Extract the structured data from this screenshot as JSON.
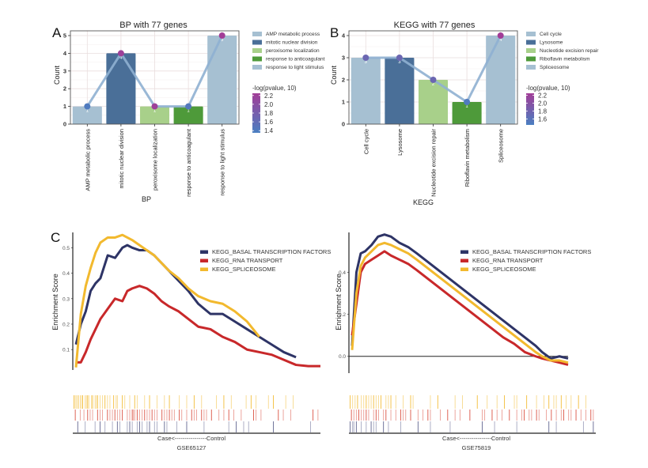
{
  "panels": {
    "A": "A",
    "B": "B",
    "C": "C"
  },
  "chart_data": [
    {
      "id": "bp",
      "type": "bar",
      "title": "BP with 77 genes",
      "xlabel": "BP",
      "ylabel": "Count",
      "ylim": [
        0,
        5
      ],
      "yticks": [
        "0",
        "1",
        "2",
        "3",
        "4",
        "5"
      ],
      "categories": [
        "AMP metabolic process",
        "mitotic nuclear division",
        "peroxisome localization",
        "response to anticoagulant",
        "response to light stimulus"
      ],
      "values": [
        1,
        4,
        1,
        1,
        5
      ],
      "bar_labels": [
        "1",
        "4",
        "1",
        "1",
        "5"
      ],
      "bar_colors": [
        "#a6c0d2",
        "#4a6f98",
        "#a8d08a",
        "#4e9a3a",
        "#a6c0d2"
      ],
      "line_points": [
        1,
        4,
        1,
        1,
        5
      ],
      "point_neglog_p": [
        1.4,
        2.2,
        2.2,
        1.45,
        2.25
      ],
      "legend": [
        "AMP metabolic process",
        "mitotic nuclear division",
        "peroxisome localization",
        "response to anticoagulant",
        "response to light stimulus"
      ],
      "colorbar_title": "-log(pvalue, 10)",
      "colorbar_ticks": [
        "2.2",
        "2.0",
        "1.8",
        "1.6",
        "1.4"
      ],
      "colorbar_range": [
        1.35,
        2.25
      ],
      "grid": true
    },
    {
      "id": "kegg",
      "type": "bar",
      "title": "KEGG with 77 genes",
      "xlabel": "KEGG",
      "ylabel": "Count",
      "ylim": [
        0,
        4
      ],
      "yticks": [
        "0",
        "1",
        "2",
        "3",
        "4"
      ],
      "categories": [
        "Cell cycle",
        "Lysosome",
        "Nucleotide excision repair",
        "Riboflavin metabolism",
        "Spliceosome"
      ],
      "values": [
        3,
        3,
        2,
        1,
        4
      ],
      "bar_labels": [
        "3",
        "3",
        "2",
        "1",
        "4"
      ],
      "bar_colors": [
        "#a6c0d2",
        "#4a6f98",
        "#a8d08a",
        "#4e9a3a",
        "#a6c0d2"
      ],
      "line_points": [
        3,
        3,
        2,
        1,
        4
      ],
      "point_neglog_p": [
        1.75,
        1.75,
        1.75,
        1.5,
        2.25
      ],
      "legend": [
        "Cell cycle",
        "Lysosome",
        "Nucleotide excision repair",
        "Riboflavin metabolism",
        "Spliceosome"
      ],
      "colorbar_title": "-log(pvalue, 10)",
      "colorbar_ticks": [
        "2.2",
        "2.0",
        "1.8",
        "1.6"
      ],
      "colorbar_range": [
        1.45,
        2.25
      ],
      "grid": true
    },
    {
      "id": "gsea1",
      "type": "line",
      "ylabel": "Enrichment Score",
      "xlabel": "Case<----------------Control",
      "dataset": "GSE65127",
      "ylim": [
        0.02,
        0.56
      ],
      "yticks": [
        0.1,
        0.2,
        0.3,
        0.4,
        0.5
      ],
      "ytick_labels": [
        "0.1",
        "0.2",
        "0.3",
        "0.4",
        "0.5"
      ],
      "x": [
        0,
        0.02,
        0.04,
        0.06,
        0.08,
        0.1,
        0.13,
        0.16,
        0.19,
        0.21,
        0.23,
        0.26,
        0.29,
        0.32,
        0.35,
        0.38,
        0.42,
        0.46,
        0.5,
        0.55,
        0.6,
        0.65,
        0.7,
        0.75,
        0.8,
        0.85,
        0.9,
        0.95,
        1.0
      ],
      "series": [
        {
          "name": "KEGG_BASAL TRANSCRIPTION FACTORS",
          "color": "#2e3466",
          "values": [
            0.12,
            0.2,
            0.25,
            0.33,
            0.36,
            0.38,
            0.47,
            0.46,
            0.5,
            0.51,
            0.5,
            0.49,
            0.49,
            0.47,
            0.44,
            0.41,
            0.37,
            0.33,
            0.28,
            0.24,
            0.24,
            0.21,
            0.18,
            0.15,
            0.12,
            0.09,
            0.07,
            null,
            null
          ]
        },
        {
          "name": "KEGG_RNA TRANSPORT",
          "color": "#c8282a",
          "values": [
            0.05,
            0.05,
            0.09,
            0.14,
            0.18,
            0.22,
            0.26,
            0.3,
            0.29,
            0.33,
            0.34,
            0.35,
            0.34,
            0.32,
            0.29,
            0.27,
            0.25,
            0.22,
            0.19,
            0.18,
            0.15,
            0.13,
            0.1,
            0.09,
            0.08,
            0.06,
            0.04,
            0.035,
            0.035
          ]
        },
        {
          "name": "KEGG_SPLICEOSOME",
          "color": "#f2b92e",
          "values": [
            0.03,
            0.24,
            0.35,
            0.42,
            0.48,
            0.52,
            0.54,
            0.54,
            0.55,
            0.54,
            0.53,
            0.51,
            0.49,
            0.47,
            0.44,
            0.41,
            0.38,
            0.34,
            0.31,
            0.29,
            0.28,
            0.25,
            0.21,
            0.15,
            null,
            null,
            null,
            null,
            null
          ]
        }
      ],
      "legend_position": "top-right"
    },
    {
      "id": "gsea2",
      "type": "line",
      "ylabel": "Enrichment Score",
      "xlabel": "Case<----------------Control",
      "dataset": "GSE75819",
      "ylim": [
        -0.08,
        0.59
      ],
      "yticks": [
        0.0,
        0.2,
        0.4
      ],
      "ytick_labels": [
        "0.0",
        "0.2",
        "0.4"
      ],
      "x": [
        0,
        0.02,
        0.04,
        0.06,
        0.09,
        0.12,
        0.15,
        0.18,
        0.22,
        0.26,
        0.3,
        0.35,
        0.4,
        0.45,
        0.5,
        0.55,
        0.6,
        0.65,
        0.7,
        0.75,
        0.8,
        0.85,
        0.88,
        0.92,
        0.96,
        1.0
      ],
      "series": [
        {
          "name": "KEGG_BASAL TRANSCRIPTION FACTORS",
          "color": "#2e3466",
          "values": [
            0.05,
            0.4,
            0.49,
            0.5,
            0.53,
            0.57,
            0.58,
            0.57,
            0.54,
            0.52,
            0.49,
            0.45,
            0.41,
            0.37,
            0.33,
            0.29,
            0.25,
            0.21,
            0.17,
            0.13,
            0.09,
            0.05,
            0.02,
            -0.01,
            0.0,
            -0.01
          ]
        },
        {
          "name": "KEGG_RNA TRANSPORT",
          "color": "#c8282a",
          "values": [
            0.1,
            0.25,
            0.4,
            0.44,
            0.46,
            0.48,
            0.5,
            0.48,
            0.46,
            0.44,
            0.41,
            0.37,
            0.33,
            0.29,
            0.25,
            0.21,
            0.17,
            0.13,
            0.09,
            0.06,
            0.02,
            0.0,
            -0.01,
            -0.02,
            -0.03,
            -0.04
          ]
        },
        {
          "name": "KEGG_SPLICEOSOME",
          "color": "#f2b92e",
          "values": [
            0.03,
            0.3,
            0.43,
            0.47,
            0.5,
            0.53,
            0.54,
            0.53,
            0.51,
            0.49,
            0.46,
            0.42,
            0.38,
            0.34,
            0.3,
            0.26,
            0.22,
            0.18,
            0.14,
            0.1,
            0.06,
            0.02,
            0.0,
            -0.02,
            -0.02,
            -0.03
          ]
        }
      ],
      "legend_position": "top-right"
    }
  ],
  "hit_rugs": {
    "gsea1": {
      "spliceosome": [
        0.005,
        0.01,
        0.015,
        0.022,
        0.03,
        0.035,
        0.04,
        0.05,
        0.055,
        0.06,
        0.065,
        0.075,
        0.08,
        0.09,
        0.095,
        0.1,
        0.11,
        0.12,
        0.13,
        0.14,
        0.15,
        0.165,
        0.175,
        0.18,
        0.2,
        0.21,
        0.23,
        0.25,
        0.26,
        0.29,
        0.31,
        0.34,
        0.37,
        0.39,
        0.43,
        0.46,
        0.49,
        0.52,
        0.58,
        0.61,
        0.64,
        0.7,
        0.72,
        0.74,
        0.79,
        0.81,
        0.86,
        0.89
      ],
      "rna": [
        0.01,
        0.03,
        0.045,
        0.06,
        0.07,
        0.08,
        0.1,
        0.11,
        0.12,
        0.14,
        0.15,
        0.16,
        0.17,
        0.18,
        0.19,
        0.2,
        0.22,
        0.23,
        0.24,
        0.245,
        0.25,
        0.26,
        0.27,
        0.28,
        0.29,
        0.3,
        0.31,
        0.32,
        0.33,
        0.34,
        0.36,
        0.37,
        0.38,
        0.39,
        0.4,
        0.41,
        0.43,
        0.44,
        0.46,
        0.48,
        0.49,
        0.5,
        0.52,
        0.53,
        0.54,
        0.56,
        0.59,
        0.61,
        0.63,
        0.65,
        0.68,
        0.73,
        0.74,
        0.76,
        0.83,
        0.85,
        0.88,
        0.97,
        0.99
      ],
      "basal": [
        0.02,
        0.05,
        0.09,
        0.11,
        0.13,
        0.16,
        0.18,
        0.19,
        0.22,
        0.23,
        0.24,
        0.26,
        0.27,
        0.28,
        0.3,
        0.31,
        0.33,
        0.34,
        0.37,
        0.38,
        0.42,
        0.46,
        0.53,
        0.63,
        0.66,
        0.69,
        0.71,
        0.81,
        0.96
      ]
    },
    "gsea2": {
      "spliceosome": [
        0.005,
        0.015,
        0.025,
        0.035,
        0.05,
        0.06,
        0.07,
        0.08,
        0.09,
        0.1,
        0.11,
        0.12,
        0.13,
        0.15,
        0.16,
        0.17,
        0.19,
        0.22,
        0.25,
        0.26,
        0.33,
        0.36,
        0.43,
        0.46,
        0.52,
        0.56,
        0.6,
        0.63,
        0.67,
        0.68,
        0.72,
        0.76,
        0.79,
        0.81,
        0.83,
        0.84,
        0.86,
        0.88,
        0.9,
        0.93,
        0.96
      ],
      "rna": [
        0.01,
        0.02,
        0.03,
        0.04,
        0.05,
        0.06,
        0.07,
        0.08,
        0.1,
        0.11,
        0.12,
        0.14,
        0.15,
        0.17,
        0.19,
        0.21,
        0.22,
        0.23,
        0.25,
        0.28,
        0.3,
        0.32,
        0.33,
        0.37,
        0.4,
        0.43,
        0.45,
        0.49,
        0.54,
        0.55,
        0.58,
        0.6,
        0.62,
        0.65,
        0.68,
        0.7,
        0.71,
        0.73,
        0.74,
        0.76,
        0.77,
        0.8,
        0.82,
        0.84,
        0.86,
        0.87,
        0.89,
        0.9,
        0.92,
        0.94,
        0.96,
        0.98,
        0.99
      ],
      "basal": [
        0.005,
        0.015,
        0.02,
        0.03,
        0.05,
        0.07,
        0.09,
        0.1,
        0.11,
        0.14,
        0.16,
        0.21,
        0.28,
        0.33,
        0.41,
        0.54,
        0.59,
        0.68,
        0.81,
        0.84,
        0.95,
        0.99
      ]
    }
  }
}
